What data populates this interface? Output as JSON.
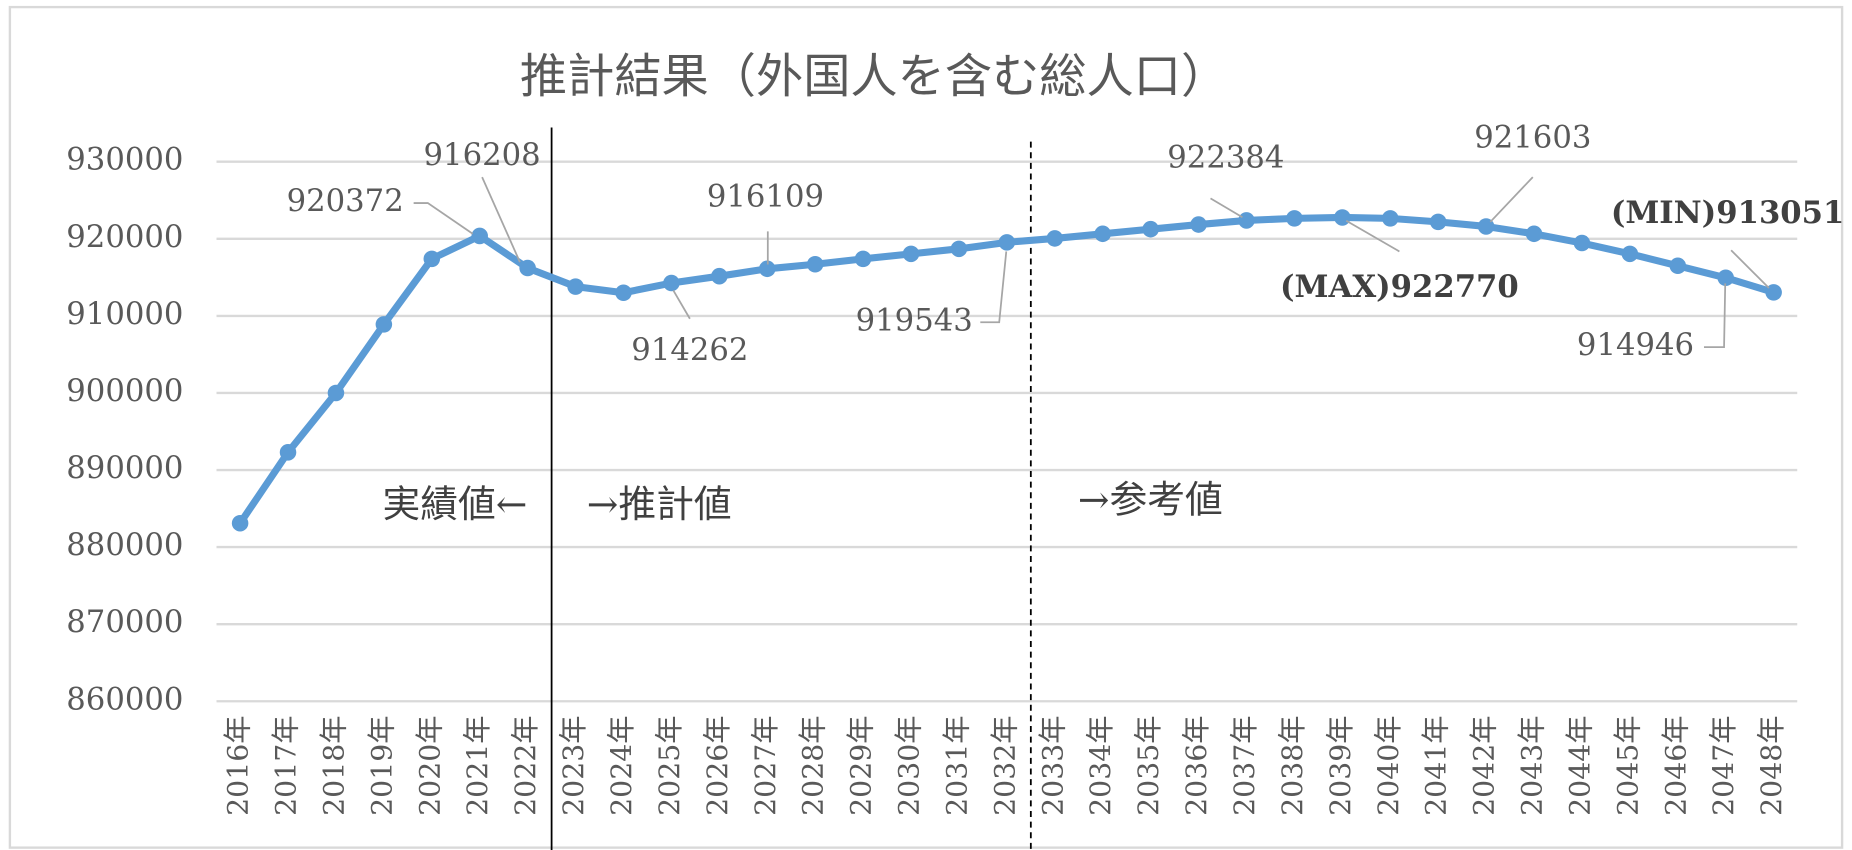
{
  "chart_data": {
    "type": "line",
    "title": "推計結果（外国人を含む総人口）",
    "categories": [
      "2016年",
      "2017年",
      "2018年",
      "2019年",
      "2020年",
      "2021年",
      "2022年",
      "2023年",
      "2024年",
      "2025年",
      "2026年",
      "2027年",
      "2028年",
      "2029年",
      "2030年",
      "2031年",
      "2032年",
      "2033年",
      "2034年",
      "2035年",
      "2036年",
      "2037年",
      "2038年",
      "2039年",
      "2040年",
      "2041年",
      "2042年",
      "2043年",
      "2044年",
      "2045年",
      "2046年",
      "2047年",
      "2048年"
    ],
    "series": [
      {
        "name": "総人口",
        "color": "#5b9bd5",
        "values": [
          883100,
          892300,
          900000,
          908900,
          917400,
          920372,
          916208,
          913800,
          913000,
          914262,
          915150,
          916109,
          916700,
          917400,
          918050,
          918700,
          919543,
          920050,
          920650,
          921250,
          921850,
          922384,
          922650,
          922770,
          922650,
          922200,
          921603,
          920650,
          919450,
          918050,
          916500,
          914946,
          913051
        ],
        "value_labels": [
          null,
          null,
          null,
          null,
          null,
          "920372",
          "916208",
          null,
          null,
          "914262",
          null,
          "916109",
          null,
          null,
          null,
          null,
          "919543",
          null,
          null,
          null,
          null,
          "922384",
          null,
          "(MAX)922770",
          null,
          null,
          "921603",
          null,
          null,
          null,
          null,
          "914946",
          "(MIN)913051"
        ]
      }
    ],
    "ylim": [
      860000,
      930000
    ],
    "yticks": [
      860000,
      870000,
      880000,
      890000,
      900000,
      910000,
      920000,
      930000
    ],
    "grid": true,
    "annotations": [
      "実績値←",
      "→推計値",
      "→参考値"
    ]
  }
}
